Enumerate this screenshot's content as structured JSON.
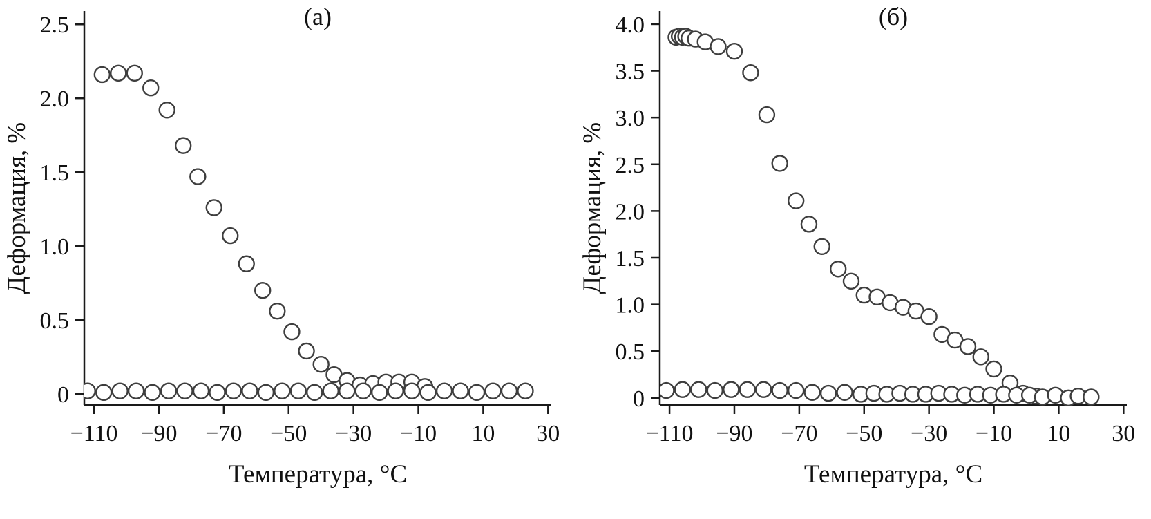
{
  "style": {
    "background": "#ffffff",
    "axis_color": "#1a1a1a",
    "marker_stroke_color": "#3e3e3e",
    "marker_fill_color": "#ffffff"
  },
  "chart_data": [
    {
      "type": "scatter",
      "title": "(а)",
      "xlabel": "Температура, °C",
      "ylabel": "Деформация, %",
      "xlim": [
        -113,
        31
      ],
      "ylim": [
        -0.075,
        2.59
      ],
      "grid": false,
      "legend": "none",
      "xticks": [
        -110,
        -90,
        -70,
        -50,
        -30,
        -10,
        10,
        30
      ],
      "xtick_labels": [
        "−110",
        "−90",
        "−70",
        "−50",
        "−30",
        "−10",
        "10",
        "30"
      ],
      "yticks": [
        0,
        0.5,
        1.0,
        1.5,
        2.0,
        2.5
      ],
      "ytick_labels": [
        "0",
        "0.5",
        "1.0",
        "1.5",
        "2.0",
        "2.5"
      ],
      "series": [
        {
          "name": "upper-curve",
          "marker": "open-circle",
          "points": [
            [
              -107.5,
              2.16
            ],
            [
              -102.5,
              2.17
            ],
            [
              -97.5,
              2.17
            ],
            [
              -92.5,
              2.07
            ],
            [
              -87.5,
              1.92
            ],
            [
              -82.5,
              1.68
            ],
            [
              -78,
              1.47
            ],
            [
              -73,
              1.26
            ],
            [
              -68,
              1.07
            ],
            [
              -63,
              0.88
            ],
            [
              -58,
              0.7
            ],
            [
              -53.5,
              0.56
            ],
            [
              -49,
              0.42
            ],
            [
              -44.5,
              0.29
            ],
            [
              -40,
              0.2
            ],
            [
              -36,
              0.13
            ],
            [
              -32,
              0.09
            ],
            [
              -28,
              0.06
            ],
            [
              -24,
              0.07
            ],
            [
              -20,
              0.08
            ],
            [
              -16,
              0.08
            ],
            [
              -12,
              0.08
            ],
            [
              -8,
              0.05
            ]
          ]
        },
        {
          "name": "baseline-curve",
          "marker": "open-circle",
          "points": [
            [
              -112,
              0.02
            ],
            [
              -107,
              0.01
            ],
            [
              -102,
              0.02
            ],
            [
              -97,
              0.02
            ],
            [
              -92,
              0.01
            ],
            [
              -87,
              0.02
            ],
            [
              -82,
              0.02
            ],
            [
              -77,
              0.02
            ],
            [
              -72,
              0.01
            ],
            [
              -67,
              0.02
            ],
            [
              -62,
              0.02
            ],
            [
              -57,
              0.01
            ],
            [
              -52,
              0.02
            ],
            [
              -47,
              0.02
            ],
            [
              -42,
              0.01
            ],
            [
              -37,
              0.02
            ],
            [
              -32,
              0.02
            ],
            [
              -27,
              0.02
            ],
            [
              -22,
              0.01
            ],
            [
              -17,
              0.02
            ],
            [
              -12,
              0.02
            ],
            [
              -7,
              0.01
            ],
            [
              -2,
              0.02
            ],
            [
              3,
              0.02
            ],
            [
              8,
              0.01
            ],
            [
              13,
              0.02
            ],
            [
              18,
              0.02
            ],
            [
              23,
              0.02
            ]
          ]
        }
      ]
    },
    {
      "type": "scatter",
      "title": "(б)",
      "xlabel": "Температура, °C",
      "ylabel": "Деформация, %",
      "xlim": [
        -113,
        31
      ],
      "ylim": [
        -0.075,
        4.14
      ],
      "grid": false,
      "legend": "none",
      "xticks": [
        -110,
        -90,
        -70,
        -50,
        -30,
        -10,
        10,
        30
      ],
      "xtick_labels": [
        "−110",
        "−90",
        "−70",
        "−50",
        "−30",
        "−10",
        "10",
        "30"
      ],
      "yticks": [
        0,
        0.5,
        1.0,
        1.5,
        2.0,
        2.5,
        3.0,
        3.5,
        4.0
      ],
      "ytick_labels": [
        "0",
        "0.5",
        "1.0",
        "1.5",
        "2.0",
        "2.5",
        "3.0",
        "3.5",
        "4.0"
      ],
      "series": [
        {
          "name": "upper-curve",
          "marker": "open-circle",
          "points": [
            [
              -108,
              3.86
            ],
            [
              -107,
              3.87
            ],
            [
              -106,
              3.86
            ],
            [
              -105,
              3.87
            ],
            [
              -104,
              3.85
            ],
            [
              -102,
              3.84
            ],
            [
              -99,
              3.81
            ],
            [
              -95,
              3.76
            ],
            [
              -90,
              3.71
            ],
            [
              -85,
              3.48
            ],
            [
              -80,
              3.03
            ],
            [
              -76,
              2.51
            ],
            [
              -71,
              2.11
            ],
            [
              -67,
              1.86
            ],
            [
              -63,
              1.62
            ],
            [
              -58,
              1.38
            ],
            [
              -54,
              1.25
            ],
            [
              -50,
              1.1
            ],
            [
              -46,
              1.08
            ],
            [
              -42,
              1.02
            ],
            [
              -38,
              0.97
            ],
            [
              -34,
              0.93
            ],
            [
              -30,
              0.87
            ],
            [
              -26,
              0.68
            ],
            [
              -22,
              0.62
            ],
            [
              -18,
              0.55
            ],
            [
              -14,
              0.44
            ],
            [
              -10,
              0.31
            ],
            [
              -5,
              0.16
            ],
            [
              -1,
              0.05
            ],
            [
              3,
              0.02
            ]
          ]
        },
        {
          "name": "baseline-curve",
          "marker": "open-circle",
          "points": [
            [
              -111,
              0.08
            ],
            [
              -106,
              0.09
            ],
            [
              -101,
              0.09
            ],
            [
              -96,
              0.08
            ],
            [
              -91,
              0.09
            ],
            [
              -86,
              0.09
            ],
            [
              -81,
              0.09
            ],
            [
              -76,
              0.08
            ],
            [
              -71,
              0.08
            ],
            [
              -66,
              0.06
            ],
            [
              -61,
              0.05
            ],
            [
              -56,
              0.06
            ],
            [
              -51,
              0.04
            ],
            [
              -47,
              0.05
            ],
            [
              -43,
              0.04
            ],
            [
              -39,
              0.05
            ],
            [
              -35,
              0.04
            ],
            [
              -31,
              0.04
            ],
            [
              -27,
              0.05
            ],
            [
              -23,
              0.04
            ],
            [
              -19,
              0.03
            ],
            [
              -15,
              0.04
            ],
            [
              -11,
              0.03
            ],
            [
              -7,
              0.04
            ],
            [
              -3,
              0.03
            ],
            [
              1,
              0.03
            ],
            [
              5,
              0.01
            ],
            [
              9,
              0.03
            ],
            [
              13,
              0.0
            ],
            [
              16,
              0.02
            ],
            [
              20,
              0.01
            ]
          ]
        }
      ]
    }
  ]
}
